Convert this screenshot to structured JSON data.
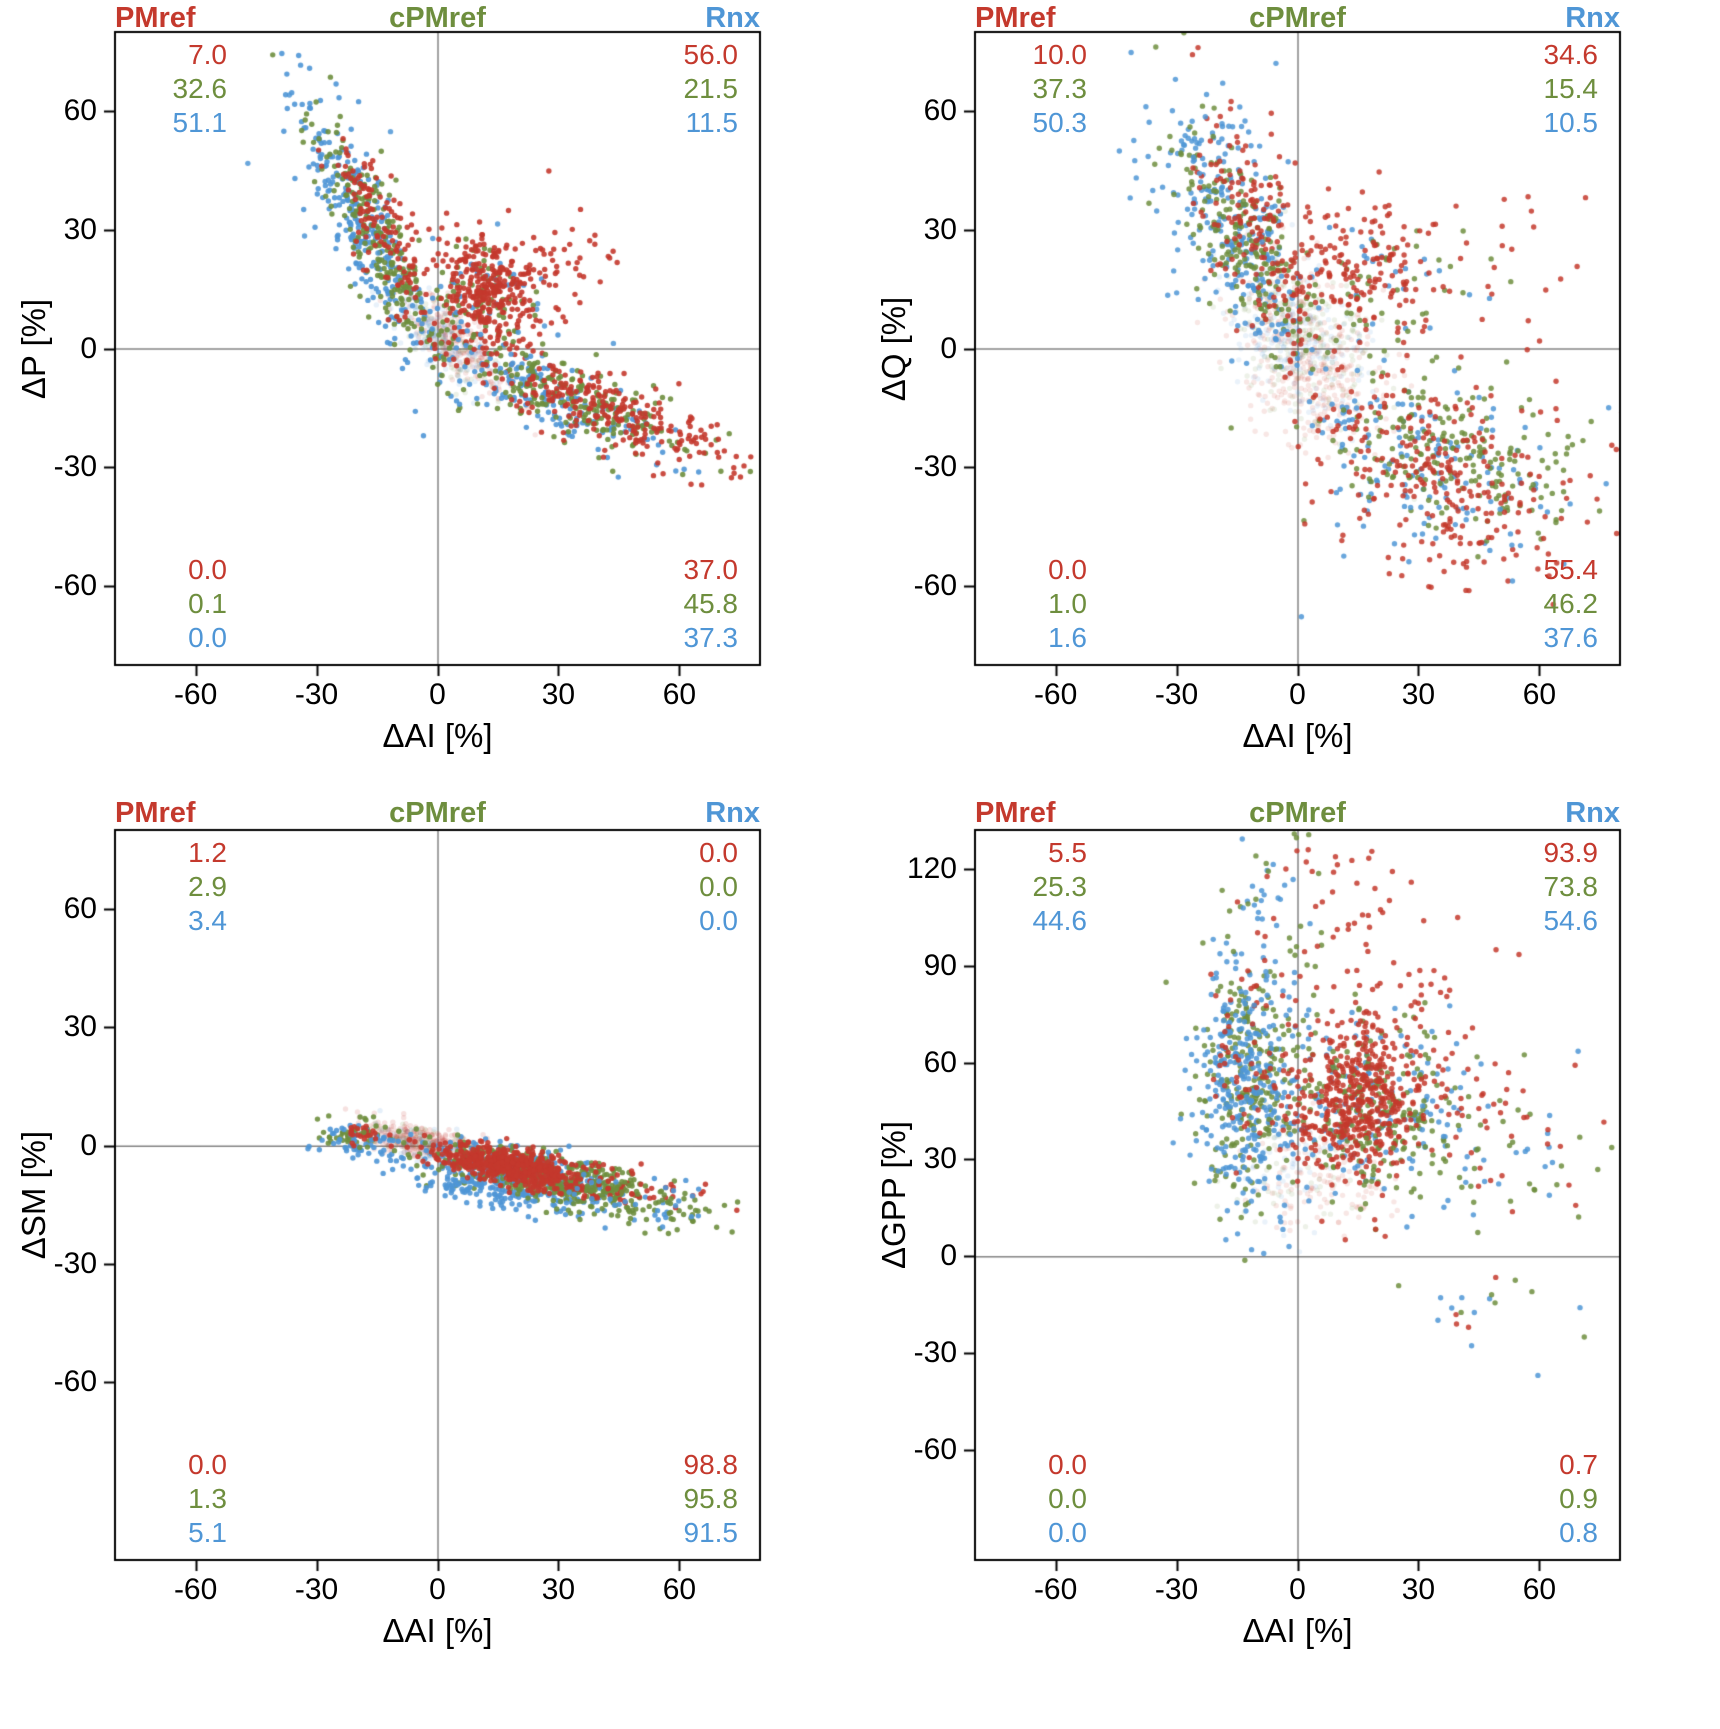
{
  "chart_data": {
    "type": "scatter",
    "legend": {
      "labels": [
        "PMref",
        "cPMref",
        "Rnx"
      ],
      "position": "top"
    },
    "colors": {
      "PMref": "#c4392d",
      "cPMref": "#6e8e3e",
      "Rnx": "#4f96d6"
    },
    "grid": false,
    "panels": [
      {
        "id": "delta-p",
        "ylabel": "ΔP [%]",
        "xlabel": "ΔAI [%]",
        "xlim": [
          -80,
          80
        ],
        "ylim": [
          -80,
          80
        ],
        "xticks": [
          "-60",
          "-30",
          "0",
          "30",
          "60"
        ],
        "yticks": [
          "-60",
          "-30",
          "0",
          "30",
          "60"
        ],
        "xtick_values": [
          -60,
          -30,
          0,
          30,
          60
        ],
        "ytick_values": [
          -60,
          -30,
          0,
          30,
          60
        ],
        "corner_stats": {
          "top_left": {
            "PMref": "7.0",
            "cPMref": "32.6",
            "Rnx": "51.1"
          },
          "top_right": {
            "PMref": "56.0",
            "cPMref": "21.5",
            "Rnx": "11.5"
          },
          "bottom_left": {
            "PMref": "0.0",
            "cPMref": "0.1",
            "Rnx": "0.0"
          },
          "bottom_right": {
            "PMref": "37.0",
            "cPMref": "45.8",
            "Rnx": "37.3"
          }
        },
        "clusters": [
          {
            "series": "PMref",
            "n": 260,
            "cx": 4,
            "cy": 2,
            "sx": 7,
            "sy": 4,
            "slope": -0.8,
            "alpha": 0.13
          },
          {
            "series": "cPMref",
            "n": 100,
            "cx": 2,
            "cy": 2,
            "sx": 6,
            "sy": 4,
            "slope": -0.8,
            "alpha": 0.13
          },
          {
            "series": "Rnx",
            "n": 150,
            "cx": 0,
            "cy": 3,
            "sx": 6,
            "sy": 4,
            "slope": -0.8,
            "alpha": 0.13
          },
          {
            "series": "Rnx",
            "n": 280,
            "cx": -18,
            "cy": 30,
            "sx": 9,
            "sy": 9,
            "slope": -1.7,
            "alpha": 0.9
          },
          {
            "series": "cPMref",
            "n": 230,
            "cx": -14,
            "cy": 26,
            "sx": 8,
            "sy": 8,
            "slope": -1.6,
            "alpha": 0.9
          },
          {
            "series": "PMref",
            "n": 140,
            "cx": -13,
            "cy": 30,
            "sx": 7,
            "sy": 7,
            "slope": -1.5,
            "alpha": 0.9
          },
          {
            "series": "Rnx",
            "n": 18,
            "cx": -10,
            "cy": 30,
            "sx": 28,
            "sy": 15,
            "slope": -0.6,
            "alpha": 0.85
          },
          {
            "series": "cPMref",
            "n": 70,
            "cx": 11,
            "cy": 13,
            "sx": 6,
            "sy": 6,
            "slope": -0.3,
            "alpha": 0.9
          },
          {
            "series": "Rnx",
            "n": 25,
            "cx": 12,
            "cy": 14,
            "sx": 8,
            "sy": 8,
            "slope": 0,
            "alpha": 0.9
          },
          {
            "series": "PMref",
            "n": 320,
            "cx": 13,
            "cy": 15,
            "sx": 7,
            "sy": 7,
            "slope": -0.3,
            "alpha": 0.9
          },
          {
            "series": "PMref",
            "n": 40,
            "cx": 30,
            "cy": 25,
            "sx": 8,
            "sy": 6,
            "slope": 0,
            "alpha": 0.9
          },
          {
            "series": "Rnx",
            "n": 160,
            "cx": 28,
            "cy": -12,
            "sx": 14,
            "sy": 4.5,
            "slope": -0.38,
            "alpha": 0.9
          },
          {
            "series": "cPMref",
            "n": 210,
            "cx": 34,
            "cy": -13,
            "sx": 16,
            "sy": 4.5,
            "slope": -0.38,
            "alpha": 0.9
          },
          {
            "series": "PMref",
            "n": 230,
            "cx": 38,
            "cy": -14,
            "sx": 16,
            "sy": 4.5,
            "slope": -0.38,
            "alpha": 0.9
          },
          {
            "series": "PMref",
            "n": 30,
            "cx": 62,
            "cy": -24,
            "sx": 8,
            "sy": 5,
            "slope": -0.35,
            "alpha": 0.9
          }
        ]
      },
      {
        "id": "delta-q",
        "ylabel": "ΔQ [%]",
        "xlabel": "ΔAI [%]",
        "xlim": [
          -80,
          80
        ],
        "ylim": [
          -80,
          80
        ],
        "xticks": [
          "-60",
          "-30",
          "0",
          "30",
          "60"
        ],
        "yticks": [
          "-60",
          "-30",
          "0",
          "30",
          "60"
        ],
        "xtick_values": [
          -60,
          -30,
          0,
          30,
          60
        ],
        "ytick_values": [
          -60,
          -30,
          0,
          30,
          60
        ],
        "corner_stats": {
          "top_left": {
            "PMref": "10.0",
            "cPMref": "37.3",
            "Rnx": "50.3"
          },
          "top_right": {
            "PMref": "34.6",
            "cPMref": "15.4",
            "Rnx": "10.5"
          },
          "bottom_left": {
            "PMref": "0.0",
            "cPMref": "1.0",
            "Rnx": "1.6"
          },
          "bottom_right": {
            "PMref": "55.4",
            "cPMref": "46.2",
            "Rnx": "37.6"
          }
        },
        "clusters": [
          {
            "series": "PMref",
            "n": 380,
            "cx": 3,
            "cy": -2,
            "sx": 9,
            "sy": 11,
            "slope": -0.5,
            "alpha": 0.12
          },
          {
            "series": "cPMref",
            "n": 220,
            "cx": 1,
            "cy": 2,
            "sx": 8,
            "sy": 10,
            "slope": -0.5,
            "alpha": 0.12
          },
          {
            "series": "Rnx",
            "n": 200,
            "cx": -1,
            "cy": 3,
            "sx": 8,
            "sy": 10,
            "slope": -0.5,
            "alpha": 0.12
          },
          {
            "series": "Rnx",
            "n": 240,
            "cx": -16,
            "cy": 30,
            "sx": 9,
            "sy": 12,
            "slope": -1.2,
            "alpha": 0.85
          },
          {
            "series": "cPMref",
            "n": 200,
            "cx": -13,
            "cy": 28,
            "sx": 9,
            "sy": 12,
            "slope": -1.2,
            "alpha": 0.85
          },
          {
            "series": "PMref",
            "n": 160,
            "cx": -11,
            "cy": 32,
            "sx": 9,
            "sy": 13,
            "slope": -1.1,
            "alpha": 0.85
          },
          {
            "series": "Rnx",
            "n": 20,
            "cx": -25,
            "cy": 55,
            "sx": 12,
            "sy": 12,
            "slope": 0,
            "alpha": 0.85
          },
          {
            "series": "Rnx",
            "n": 30,
            "cx": 20,
            "cy": 18,
            "sx": 14,
            "sy": 11,
            "slope": 0,
            "alpha": 0.85
          },
          {
            "series": "cPMref",
            "n": 50,
            "cx": 22,
            "cy": 14,
            "sx": 13,
            "sy": 9,
            "slope": 0,
            "alpha": 0.85
          },
          {
            "series": "PMref",
            "n": 170,
            "cx": 15,
            "cy": 18,
            "sx": 11,
            "sy": 10,
            "slope": -0.1,
            "alpha": 0.85
          },
          {
            "series": "PMref",
            "n": 25,
            "cx": 55,
            "cy": 25,
            "sx": 14,
            "sy": 15,
            "slope": 0,
            "alpha": 0.85
          },
          {
            "series": "Rnx",
            "n": 130,
            "cx": 30,
            "cy": -28,
            "sx": 16,
            "sy": 11,
            "slope": -0.25,
            "alpha": 0.85
          },
          {
            "series": "cPMref",
            "n": 200,
            "cx": 38,
            "cy": -28,
            "sx": 16,
            "sy": 10,
            "slope": -0.25,
            "alpha": 0.85
          },
          {
            "series": "PMref",
            "n": 250,
            "cx": 36,
            "cy": -30,
            "sx": 17,
            "sy": 11,
            "slope": -0.25,
            "alpha": 0.85
          },
          {
            "series": "PMref",
            "n": 25,
            "cx": 45,
            "cy": -52,
            "sx": 15,
            "sy": 6,
            "slope": 0,
            "alpha": 0.85
          },
          {
            "series": "Rnx",
            "n": 15,
            "cx": 35,
            "cy": -52,
            "sx": 18,
            "sy": 6,
            "slope": 0,
            "alpha": 0.85
          }
        ]
      },
      {
        "id": "delta-sm",
        "ylabel": "ΔSM [%]",
        "xlabel": "ΔAI [%]",
        "xlim": [
          -80,
          80
        ],
        "ylim": [
          -105,
          80
        ],
        "xticks": [
          "-60",
          "-30",
          "0",
          "30",
          "60"
        ],
        "yticks": [
          "-60",
          "-30",
          "0",
          "30",
          "60"
        ],
        "xtick_values": [
          -60,
          -30,
          0,
          30,
          60
        ],
        "ytick_values": [
          -60,
          -30,
          0,
          30,
          60
        ],
        "corner_stats": {
          "top_left": {
            "PMref": "1.2",
            "cPMref": "2.9",
            "Rnx": "3.4"
          },
          "top_right": {
            "PMref": "0.0",
            "cPMref": "0.0",
            "Rnx": "0.0"
          },
          "bottom_left": {
            "PMref": "0.0",
            "cPMref": "1.3",
            "Rnx": "5.1"
          },
          "bottom_right": {
            "PMref": "98.8",
            "cPMref": "95.8",
            "Rnx": "91.5"
          }
        },
        "clusters": [
          {
            "series": "PMref",
            "n": 300,
            "cx": -4,
            "cy": 1,
            "sx": 7,
            "sy": 2,
            "slope": -0.15,
            "alpha": 0.15
          },
          {
            "series": "Rnx",
            "n": 80,
            "cx": -6,
            "cy": 0,
            "sx": 6,
            "sy": 2,
            "slope": -0.15,
            "alpha": 0.15
          },
          {
            "series": "cPMref",
            "n": 60,
            "cx": -5,
            "cy": 1,
            "sx": 6,
            "sy": 2,
            "slope": -0.15,
            "alpha": 0.15
          },
          {
            "series": "cPMref",
            "n": 45,
            "cx": -21,
            "cy": 3,
            "sx": 5,
            "sy": 1.8,
            "slope": 0.05,
            "alpha": 0.9
          },
          {
            "series": "Rnx",
            "n": 55,
            "cx": -17,
            "cy": 0,
            "sx": 6,
            "sy": 2.5,
            "slope": -0.1,
            "alpha": 0.9
          },
          {
            "series": "PMref",
            "n": 25,
            "cx": -19,
            "cy": 3,
            "sx": 4,
            "sy": 1.5,
            "slope": 0,
            "alpha": 0.9
          },
          {
            "series": "Rnx",
            "n": 350,
            "cx": 20,
            "cy": -7,
            "sx": 13,
            "sy": 3.2,
            "slope": -0.2,
            "alpha": 0.9
          },
          {
            "series": "cPMref",
            "n": 380,
            "cx": 26,
            "cy": -7,
            "sx": 14,
            "sy": 2.8,
            "slope": -0.18,
            "alpha": 0.9
          },
          {
            "series": "Rnx",
            "n": 90,
            "cx": 12,
            "cy": -11,
            "sx": 9,
            "sy": 2.5,
            "slope": -0.2,
            "alpha": 0.9
          },
          {
            "series": "cPMref",
            "n": 60,
            "cx": 35,
            "cy": -13,
            "sx": 12,
            "sy": 3,
            "slope": -0.15,
            "alpha": 0.9
          },
          {
            "series": "PMref",
            "n": 550,
            "cx": 17,
            "cy": -5,
            "sx": 9,
            "sy": 2.2,
            "slope": -0.18,
            "alpha": 0.9
          },
          {
            "series": "PMref",
            "n": 60,
            "cx": 48,
            "cy": -11,
            "sx": 10,
            "sy": 2.5,
            "slope": -0.15,
            "alpha": 0.9
          },
          {
            "series": "cPMref",
            "n": 50,
            "cx": 55,
            "cy": -14,
            "sx": 10,
            "sy": 3,
            "slope": -0.15,
            "alpha": 0.9
          },
          {
            "series": "Rnx",
            "n": 30,
            "cx": 50,
            "cy": -13,
            "sx": 10,
            "sy": 3,
            "slope": -0.15,
            "alpha": 0.9
          }
        ]
      },
      {
        "id": "delta-gpp",
        "ylabel": "ΔGPP [%]",
        "xlabel": "ΔAI [%]",
        "xlim": [
          -80,
          80
        ],
        "ylim": [
          -94,
          132
        ],
        "xticks": [
          "-60",
          "-30",
          "0",
          "30",
          "60"
        ],
        "yticks": [
          "-60",
          "-30",
          "0",
          "30",
          "60",
          "90",
          "120"
        ],
        "xtick_values": [
          -60,
          -30,
          0,
          30,
          60
        ],
        "ytick_values": [
          -60,
          -30,
          0,
          30,
          60,
          90,
          120
        ],
        "corner_stats": {
          "top_left": {
            "PMref": "5.5",
            "cPMref": "25.3",
            "Rnx": "44.6"
          },
          "top_right": {
            "PMref": "93.9",
            "cPMref": "73.8",
            "Rnx": "54.6"
          },
          "bottom_left": {
            "PMref": "0.0",
            "cPMref": "0.0",
            "Rnx": "0.0"
          },
          "bottom_right": {
            "PMref": "0.7",
            "cPMref": "0.9",
            "Rnx": "0.8"
          }
        },
        "clusters": [
          {
            "series": "PMref",
            "n": 130,
            "cx": 6,
            "cy": 25,
            "sx": 8,
            "sy": 10,
            "slope": 0,
            "alpha": 0.12
          },
          {
            "series": "Rnx",
            "n": 50,
            "cx": -4,
            "cy": 28,
            "sx": 6,
            "sy": 10,
            "slope": 0,
            "alpha": 0.12
          },
          {
            "series": "cPMref",
            "n": 40,
            "cx": 0,
            "cy": 25,
            "sx": 7,
            "sy": 10,
            "slope": 0,
            "alpha": 0.12
          },
          {
            "series": "cPMref",
            "n": 240,
            "cx": -12,
            "cy": 55,
            "sx": 6.5,
            "sy": 19,
            "slope": 0,
            "alpha": 0.85
          },
          {
            "series": "Rnx",
            "n": 320,
            "cx": -13,
            "cy": 52,
            "sx": 6.5,
            "sy": 19,
            "slope": 0,
            "alpha": 0.85
          },
          {
            "series": "PMref",
            "n": 50,
            "cx": -13,
            "cy": 60,
            "sx": 6,
            "sy": 18,
            "slope": 0,
            "alpha": 0.85
          },
          {
            "series": "Rnx",
            "n": 25,
            "cx": -10,
            "cy": 110,
            "sx": 5,
            "sy": 15,
            "slope": 0,
            "alpha": 0.85
          },
          {
            "series": "cPMref",
            "n": 20,
            "cx": -8,
            "cy": 112,
            "sx": 6,
            "sy": 15,
            "slope": 0,
            "alpha": 0.85
          },
          {
            "series": "PMref",
            "n": 30,
            "cx": 8,
            "cy": 115,
            "sx": 10,
            "sy": 15,
            "slope": 0,
            "alpha": 0.85
          },
          {
            "series": "Rnx",
            "n": 130,
            "cx": 18,
            "cy": 44,
            "sx": 12,
            "sy": 15,
            "slope": 0,
            "alpha": 0.85
          },
          {
            "series": "cPMref",
            "n": 220,
            "cx": 19,
            "cy": 44,
            "sx": 11,
            "sy": 14,
            "slope": 0,
            "alpha": 0.85
          },
          {
            "series": "PMref",
            "n": 480,
            "cx": 15,
            "cy": 46,
            "sx": 8,
            "sy": 12,
            "slope": 0,
            "alpha": 0.85
          },
          {
            "series": "PMref",
            "n": 70,
            "cx": 20,
            "cy": 80,
            "sx": 12,
            "sy": 15,
            "slope": 0,
            "alpha": 0.85
          },
          {
            "series": "cPMref",
            "n": 35,
            "cx": 47,
            "cy": 35,
            "sx": 14,
            "sy": 12,
            "slope": 0,
            "alpha": 0.85
          },
          {
            "series": "Rnx",
            "n": 25,
            "cx": 47,
            "cy": 37,
            "sx": 14,
            "sy": 13,
            "slope": 0,
            "alpha": 0.85
          },
          {
            "series": "PMref",
            "n": 50,
            "cx": 45,
            "cy": 42,
            "sx": 14,
            "sy": 13,
            "slope": -0.2,
            "alpha": 0.85
          },
          {
            "series": "Rnx",
            "n": 9,
            "cx": 48,
            "cy": -18,
            "sx": 14,
            "sy": 7,
            "slope": 0,
            "alpha": 0.85
          },
          {
            "series": "cPMref",
            "n": 7,
            "cx": 52,
            "cy": -14,
            "sx": 12,
            "sy": 7,
            "slope": 0,
            "alpha": 0.85
          },
          {
            "series": "PMref",
            "n": 4,
            "cx": 42,
            "cy": -22,
            "sx": 8,
            "sy": 5,
            "slope": 0,
            "alpha": 0.85
          }
        ]
      }
    ]
  }
}
